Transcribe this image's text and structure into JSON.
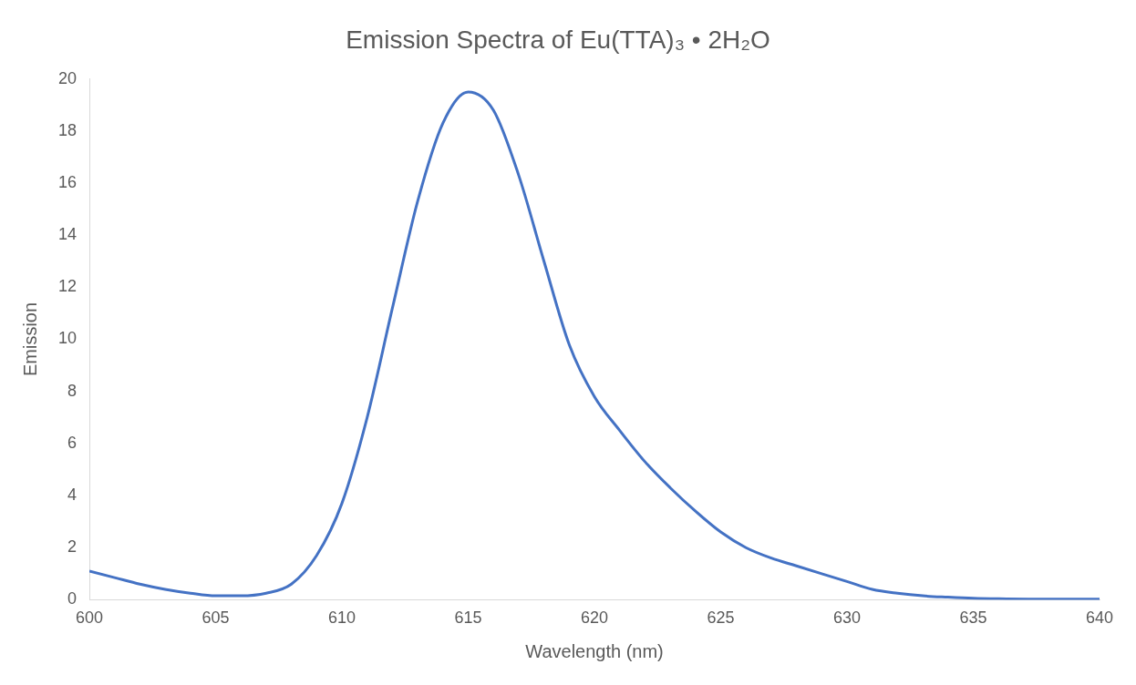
{
  "chart_data": {
    "type": "line",
    "title": "Emission Spectra of Eu(TTA)₃ • 2H₂O",
    "xlabel": "Wavelength (nm)",
    "ylabel": "Emission",
    "x": [
      600,
      601,
      602,
      603,
      604,
      605,
      606,
      607,
      608,
      609,
      610,
      611,
      612,
      613,
      614,
      615,
      616,
      617,
      618,
      619,
      620,
      621,
      622,
      623,
      624,
      625,
      626,
      627,
      628,
      629,
      630,
      631,
      632,
      633,
      634,
      635,
      636,
      638,
      640
    ],
    "series": [
      {
        "color": "#4472c4",
        "values": [
          1.1,
          0.85,
          0.6,
          0.4,
          0.25,
          0.15,
          0.15,
          0.25,
          0.6,
          1.7,
          3.7,
          7.0,
          11.2,
          15.3,
          18.3,
          19.5,
          18.8,
          16.3,
          13.0,
          9.8,
          7.8,
          6.5,
          5.3,
          4.3,
          3.4,
          2.6,
          2.0,
          1.6,
          1.3,
          1.0,
          0.7,
          0.4,
          0.25,
          0.15,
          0.1,
          0.06,
          0.04,
          0.02,
          0.02
        ]
      }
    ],
    "xlim": [
      600,
      640
    ],
    "xticks": [
      600,
      605,
      610,
      615,
      620,
      625,
      630,
      635,
      640
    ],
    "ylim": [
      0,
      20
    ],
    "yticks": [
      0,
      2,
      4,
      6,
      8,
      10,
      12,
      14,
      16,
      18,
      20
    ],
    "grid": false,
    "legend": false,
    "marker": "none",
    "line_style": "solid"
  }
}
